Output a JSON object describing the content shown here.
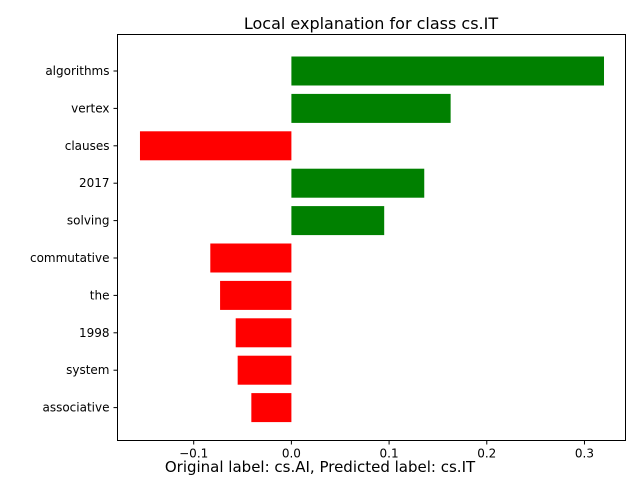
{
  "chart_data": {
    "type": "bar",
    "orientation": "horizontal",
    "title": "Local explanation for class cs.IT",
    "categories": [
      "algorithms",
      "vertex",
      "clauses",
      "2017",
      "solving",
      "commutative",
      "the",
      "1998",
      "system",
      "associative"
    ],
    "values": [
      0.32,
      0.163,
      -0.155,
      0.136,
      0.095,
      -0.083,
      -0.073,
      -0.057,
      -0.055,
      -0.041
    ],
    "positive_color": "#008000",
    "negative_color": "#ff0000",
    "xlim": [
      -0.178,
      0.342
    ],
    "x_ticks": [
      -0.1,
      0.0,
      0.1,
      0.2,
      0.3
    ],
    "x_tick_labels": [
      "−0.1",
      "0.0",
      "0.1",
      "0.2",
      "0.3"
    ],
    "grid": false,
    "xlabel": "",
    "ylabel": ""
  },
  "caption": "Original label: cs.AI, Predicted label: cs.IT"
}
